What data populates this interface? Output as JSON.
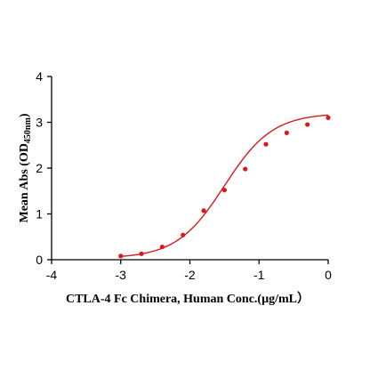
{
  "chart_data": {
    "type": "scatter",
    "title": "",
    "xlabel": "CTLA-4 Fc Chimera, Human  Conc.(µg/mL）",
    "ylabel": {
      "prefix": "Mean Abs (OD",
      "subscript": "450nm",
      "suffix": ")"
    },
    "xlim": [
      -4,
      0
    ],
    "ylim": [
      0,
      4
    ],
    "xticks": [
      "-4",
      "-3",
      "-2",
      "-1",
      "0"
    ],
    "yticks": [
      "0",
      "1",
      "2",
      "3",
      "4"
    ],
    "grid": false,
    "legend": "none",
    "series": [
      {
        "x": [
          -3.0,
          -2.7,
          -2.4,
          -2.1,
          -1.8,
          -1.5,
          -1.2,
          -0.9,
          -0.6,
          -0.3,
          0.0
        ],
        "y": [
          0.08,
          0.13,
          0.28,
          0.54,
          1.07,
          1.52,
          1.98,
          2.52,
          2.77,
          2.95,
          3.1
        ]
      }
    ],
    "fit_curve": {
      "bottom": 0.03,
      "top": 3.2,
      "log_ec50": -1.5,
      "hill_slope": 1.25
    },
    "color": "#d7191c"
  }
}
